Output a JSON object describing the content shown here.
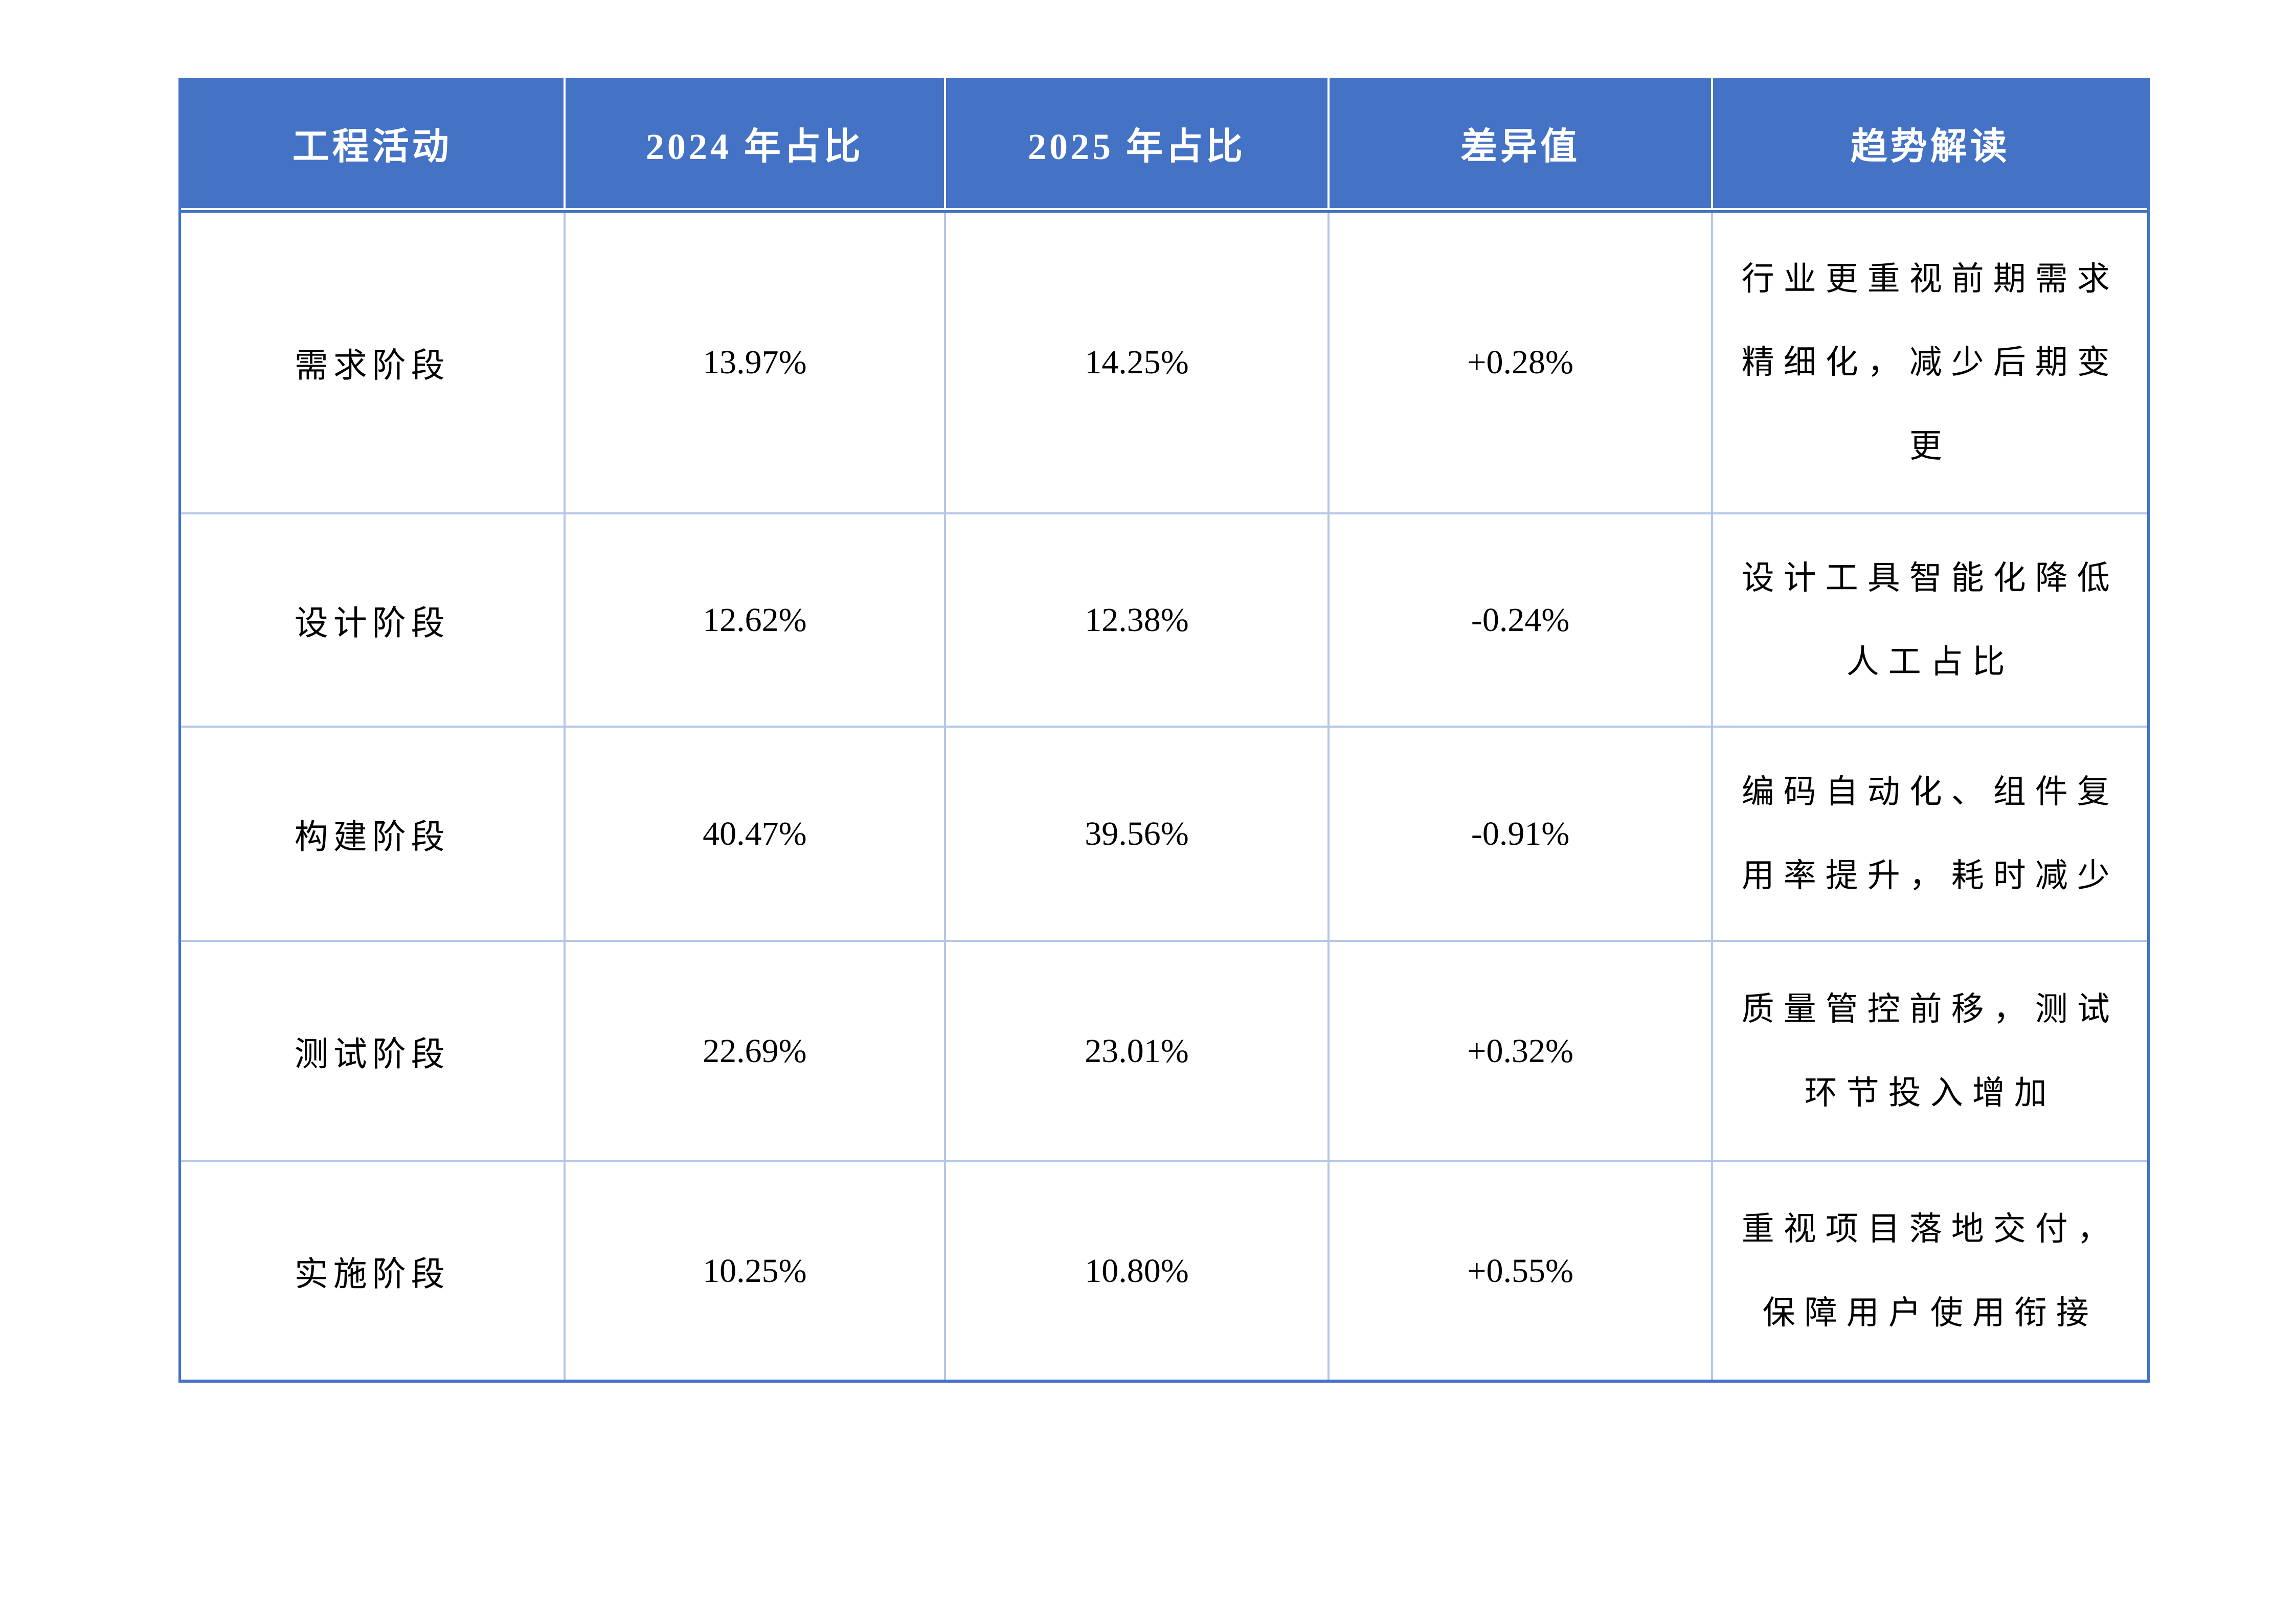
{
  "table": {
    "columns": [
      "工程活动",
      "2024 年占比",
      "2025 年占比",
      "差异值",
      "趋势解读"
    ],
    "rows": [
      {
        "activity": "需求阶段",
        "y2024": "13.97%",
        "y2025": "14.25%",
        "diff": "+0.28%",
        "trend": "行业更重视前期需求精细化，减少后期变更"
      },
      {
        "activity": "设计阶段",
        "y2024": "12.62%",
        "y2025": "12.38%",
        "diff": "-0.24%",
        "trend": "设计工具智能化降低人工占比"
      },
      {
        "activity": "构建阶段",
        "y2024": "40.47%",
        "y2025": "39.56%",
        "diff": "-0.91%",
        "trend": "编码自动化、组件复用率提升，耗时减少"
      },
      {
        "activity": "测试阶段",
        "y2024": "22.69%",
        "y2025": "23.01%",
        "diff": "+0.32%",
        "trend": "质量管控前移，测试环节投入增加"
      },
      {
        "activity": "实施阶段",
        "y2024": "10.25%",
        "y2025": "10.80%",
        "diff": "+0.55%",
        "trend": "重视项目落地交付，保障用户使用衔接"
      }
    ],
    "colors": {
      "header_bg": "#4472C4",
      "header_text": "#FFFFFF",
      "grid_line": "#B4C7E7",
      "outer_border": "#4472C4",
      "body_text": "#000000"
    }
  },
  "chart_data": {
    "type": "table",
    "title": "",
    "columns": [
      "工程活动",
      "2024 年占比",
      "2025 年占比",
      "差异值",
      "趋势解读"
    ],
    "rows": [
      [
        "需求阶段",
        "13.97%",
        "14.25%",
        "+0.28%",
        "行业更重视前期需求精细化，减少后期变更"
      ],
      [
        "设计阶段",
        "12.62%",
        "12.38%",
        "-0.24%",
        "设计工具智能化降低人工占比"
      ],
      [
        "构建阶段",
        "40.47%",
        "39.56%",
        "-0.91%",
        "编码自动化、组件复用率提升，耗时减少"
      ],
      [
        "测试阶段",
        "22.69%",
        "23.01%",
        "+0.32%",
        "质量管控前移，测试环节投入增加"
      ],
      [
        "实施阶段",
        "10.25%",
        "10.80%",
        "+0.55%",
        "重视项目落地交付，保障用户使用衔接"
      ]
    ],
    "series": [
      {
        "name": "2024 年占比",
        "values": [
          13.97,
          12.62,
          40.47,
          22.69,
          10.25
        ]
      },
      {
        "name": "2025 年占比",
        "values": [
          14.25,
          12.38,
          39.56,
          23.01,
          10.8
        ]
      },
      {
        "name": "差异值",
        "values": [
          0.28,
          -0.24,
          -0.91,
          0.32,
          0.55
        ]
      }
    ],
    "categories": [
      "需求阶段",
      "设计阶段",
      "构建阶段",
      "测试阶段",
      "实施阶段"
    ]
  }
}
